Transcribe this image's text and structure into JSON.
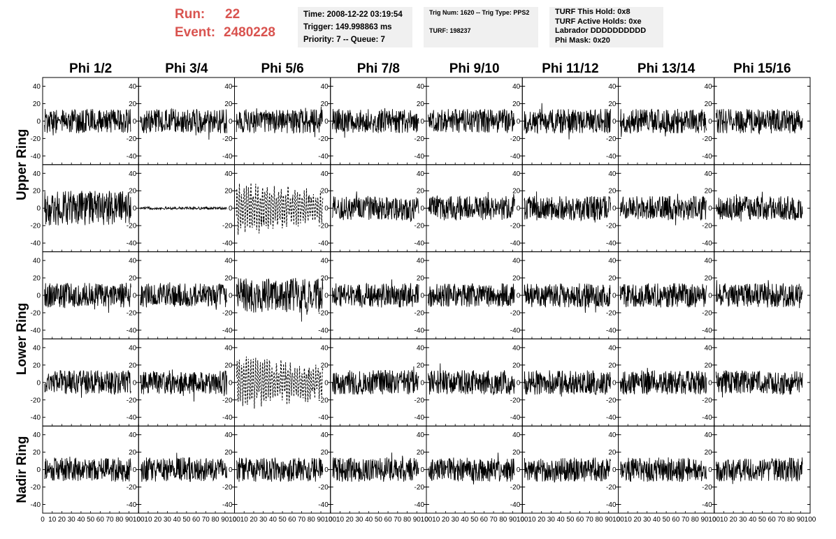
{
  "header": {
    "run_label": "Run:",
    "run_value": "22",
    "event_label": "Event:",
    "event_value": "2480228",
    "time_line": "Time: 2008-12-22 03:19:54",
    "trigger_line": "Trigger: 149.998863 ms",
    "priority_line": "Priority: 7 -- Queue: 7",
    "trig_line": "Trig Num: 1620 -- Trig Type: PPS2",
    "turf_line": "TURF: 198237",
    "turf_hold_line": "TURF This Hold: 0x8",
    "turf_active_line": "TURF Active Holds: 0xe",
    "labrador_line": "Labrador DDDDDDDDDD",
    "phi_mask_line": "Phi Mask: 0x20"
  },
  "chart_data": {
    "type": "line",
    "columns": [
      "Phi 1/2",
      "Phi 3/4",
      "Phi 5/6",
      "Phi 7/8",
      "Phi 9/10",
      "Phi 11/12",
      "Phi 13/14",
      "Phi 15/16"
    ],
    "ring_labels": [
      "Upper Ring",
      "Lower Ring",
      "Nadir Ring"
    ],
    "rows": 5,
    "xlim": [
      0,
      100
    ],
    "ylim": [
      -50,
      50
    ],
    "y_ticks": [
      -40,
      -20,
      0,
      20,
      40
    ],
    "x_tick_labels": [
      "0",
      "10",
      "20",
      "30",
      "40",
      "50",
      "60",
      "70",
      "80",
      "90",
      "100"
    ],
    "x_range_points": [
      2,
      92
    ],
    "line_color": "#000000",
    "dashed_panels": [
      [
        1,
        2
      ],
      [
        3,
        2
      ]
    ],
    "flat_panels": [
      [
        1,
        1
      ]
    ],
    "noise_amplitude": {
      "default": 14,
      "upper_row0": 14,
      "upper_row1_col0": 20,
      "lower_row2_col2": 20
    }
  }
}
